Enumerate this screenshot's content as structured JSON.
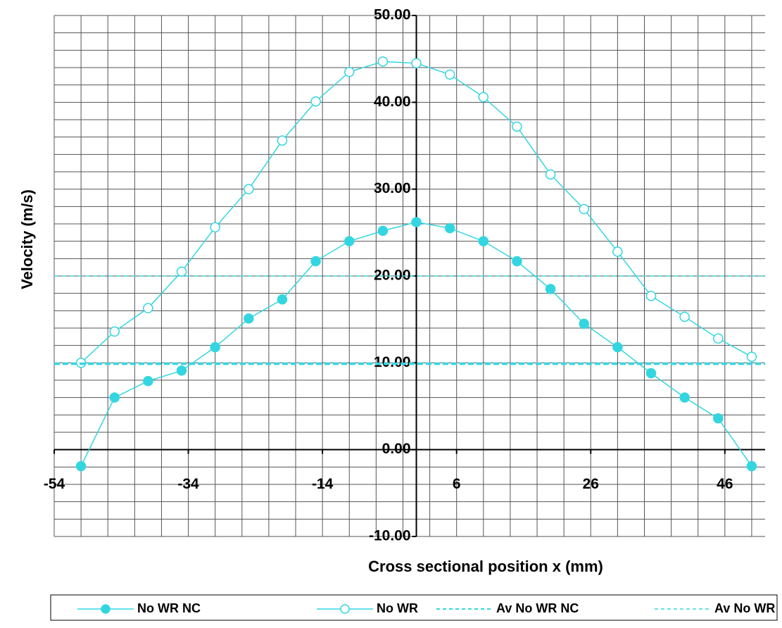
{
  "chart_data": {
    "type": "line",
    "x_label": "Cross sectional position x (mm)",
    "y_label": "Velocity (m/s)",
    "x": [
      -50,
      -45,
      -40,
      -35,
      -30,
      -25,
      -20,
      -15,
      -10,
      -5,
      0,
      5,
      10,
      15,
      20,
      25,
      30,
      35,
      40,
      45,
      50
    ],
    "series": [
      {
        "name": "No WR NC",
        "color": "#33d6e0",
        "marker": "filled",
        "values": [
          -1.9,
          6,
          7.9,
          9.1,
          11.8,
          15.1,
          17.3,
          21.7,
          24,
          25.2,
          26.2,
          25.5,
          24,
          21.7,
          18.5,
          14.5,
          11.8,
          8.8,
          6,
          3.6,
          -1.9
        ]
      },
      {
        "name": "No WR",
        "color": "#33d6e0",
        "marker": "open",
        "values": [
          10,
          13.6,
          16.3,
          20.5,
          25.6,
          30,
          35.6,
          40.1,
          43.5,
          44.7,
          44.5,
          43.2,
          40.6,
          37.2,
          31.7,
          27.7,
          22.8,
          17.7,
          15.3,
          12.8,
          10.7
        ]
      },
      {
        "name": "Av No WR NC",
        "color": "#33d6e0",
        "dash": "thick",
        "x": [
          -54,
          52
        ],
        "values": [
          9.9,
          9.9
        ]
      },
      {
        "name": "Av No WR",
        "color": "#33d6e0",
        "dash": "thin",
        "x": [
          -54,
          52
        ],
        "values": [
          20,
          20
        ]
      }
    ],
    "xlim": [
      -54,
      52
    ],
    "xticks": [
      -54,
      -34,
      -14,
      6,
      26,
      46
    ],
    "ylim": [
      -10,
      50
    ],
    "yticks": [
      {
        "value": -10,
        "label": "-10.00"
      },
      {
        "value": 0,
        "label": "0.00"
      },
      {
        "value": 10,
        "label": "10.00"
      },
      {
        "value": 20,
        "label": "20.00"
      },
      {
        "value": 30,
        "label": "30.00"
      },
      {
        "value": 40,
        "label": "40.00"
      },
      {
        "value": 50,
        "label": "50.00"
      }
    ],
    "grid": true,
    "legend": "bottom"
  }
}
